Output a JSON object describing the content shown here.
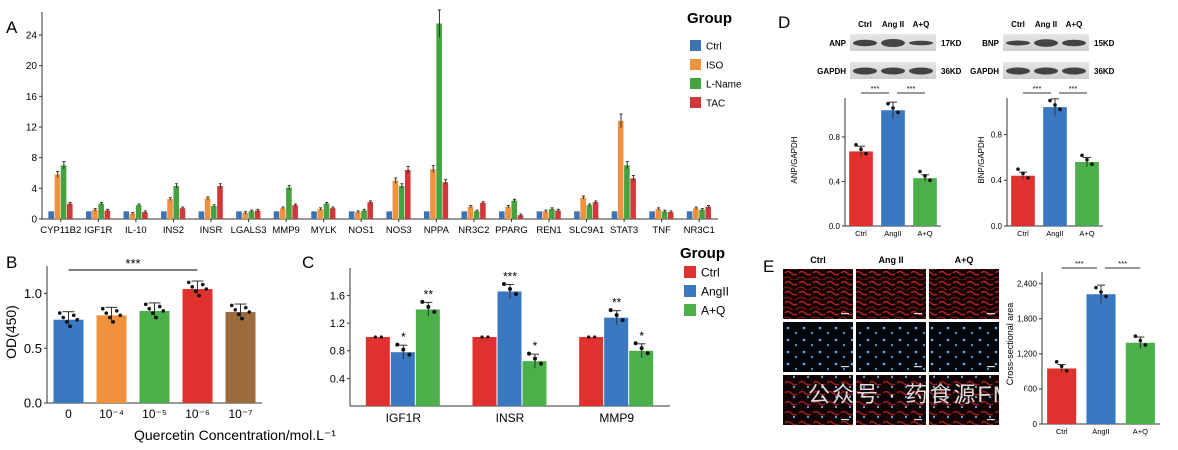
{
  "colors": {
    "ctrl": "#3d73b3",
    "iso": "#f0923d",
    "lname": "#44a33f",
    "tac": "#d0383a",
    "red": "#e0312e",
    "blue": "#3a78c2",
    "green": "#4cb04a",
    "orange": "#f0923d",
    "brown": "#9b6b3c"
  },
  "watermark": "公众号 · 药食源FMH",
  "chart_data": [
    {
      "id": "A",
      "type": "bar",
      "panel_letter": "A",
      "legend_title": "Group",
      "legend_position": "top-right",
      "categories": [
        "CYP11B2",
        "IGF1R",
        "IL-10",
        "INS2",
        "INSR",
        "LGALS3",
        "MMP9",
        "MYLK",
        "NOS1",
        "NOS3",
        "NPPA",
        "NR3C2",
        "PPARG",
        "REN1",
        "SLC9A1",
        "STAT3",
        "TNF",
        "NR3C1"
      ],
      "series": [
        {
          "name": "Ctrl",
          "values": [
            1,
            1,
            1,
            1,
            1,
            1,
            1,
            1,
            1,
            1,
            1,
            1,
            1,
            1,
            1,
            1,
            1,
            1
          ]
        },
        {
          "name": "ISO",
          "values": [
            5.8,
            1.2,
            0.7,
            2.6,
            2.7,
            0.8,
            1.4,
            1.3,
            0.9,
            5.0,
            6.5,
            1.6,
            1.6,
            1.0,
            2.8,
            12.8,
            1.3,
            1.4
          ]
        },
        {
          "name": "L-Name",
          "values": [
            7.0,
            2.0,
            1.8,
            4.3,
            1.7,
            1.0,
            4.1,
            2.0,
            1.1,
            4.3,
            25.5,
            1.0,
            2.4,
            1.3,
            1.8,
            7.0,
            1.0,
            1.2
          ]
        },
        {
          "name": "TAC",
          "values": [
            2.0,
            1.1,
            0.9,
            1.4,
            4.3,
            1.1,
            1.8,
            1.4,
            2.2,
            6.4,
            4.8,
            2.1,
            0.5,
            1.1,
            2.2,
            5.3,
            0.9,
            1.6
          ]
        }
      ],
      "ylim": [
        0,
        27
      ],
      "yticks": [
        "0",
        "4",
        "8",
        "12",
        "16",
        "20",
        "24"
      ]
    },
    {
      "id": "B",
      "type": "bar",
      "panel_letter": "B",
      "categories": [
        "0",
        "10⁻⁴",
        "10⁻⁵",
        "10⁻⁶",
        "10⁻⁷"
      ],
      "values": [
        0.76,
        0.8,
        0.84,
        1.04,
        0.83
      ],
      "xlabel": "Quercetin Concentration/mol.L⁻¹",
      "ylabel": "OD(450)",
      "ylim": [
        0,
        1.25
      ],
      "yticks": [
        "0.0",
        "0.5",
        "1.0"
      ],
      "significance": "***"
    },
    {
      "id": "C",
      "type": "bar",
      "panel_letter": "C",
      "legend_title": "Group",
      "legend_position": "top-right",
      "categories": [
        "IGF1R",
        "INSR",
        "MMP9"
      ],
      "series": [
        {
          "name": "Ctrl",
          "values": [
            1.0,
            1.0,
            1.0
          ]
        },
        {
          "name": "AngII",
          "values": [
            0.78,
            1.66,
            1.28
          ]
        },
        {
          "name": "A+Q",
          "values": [
            1.4,
            0.65,
            0.8
          ]
        }
      ],
      "annotations": [
        [
          "",
          "*",
          "**"
        ],
        [
          "",
          "***",
          "*"
        ],
        [
          "",
          "**",
          "*"
        ]
      ],
      "ylim": [
        0,
        2.0
      ],
      "yticks": [
        "0.4",
        "0.8",
        "1.2",
        "1.6"
      ]
    },
    {
      "id": "D_ANP",
      "type": "bar",
      "panel_letter": "D",
      "blot_lanes": [
        "Ctrl",
        "Ang II",
        "A+Q"
      ],
      "blot_bands": [
        {
          "name": "ANP",
          "size": "17KD"
        },
        {
          "name": "GAPDH",
          "size": "36KD"
        }
      ],
      "categories": [
        "Ctrl",
        "AngII",
        "A+Q"
      ],
      "values": [
        0.67,
        1.04,
        0.43
      ],
      "ylabel": "ANP/GAPDH",
      "ylim": [
        0,
        1.15
      ],
      "yticks": [
        "0.0",
        "0.4",
        "0.8"
      ],
      "significance": [
        "***",
        "***"
      ]
    },
    {
      "id": "D_BNP",
      "type": "bar",
      "blot_lanes": [
        "Ctrl",
        "Ang II",
        "A+Q"
      ],
      "blot_bands": [
        {
          "name": "BNP",
          "size": "15KD"
        },
        {
          "name": "GAPDH",
          "size": "36KD"
        }
      ],
      "categories": [
        "Ctrl",
        "AngII",
        "A+Q"
      ],
      "values": [
        0.44,
        1.04,
        0.56
      ],
      "ylabel": "BNP/GAPDH",
      "ylim": [
        0,
        1.12
      ],
      "yticks": [
        "0.0",
        "0.4",
        "0.8"
      ],
      "significance": [
        "***",
        "***"
      ]
    },
    {
      "id": "E",
      "type": "bar",
      "panel_letter": "E",
      "micrograph_columns": [
        "Ctrl",
        "Ang II",
        "A+Q"
      ],
      "categories": [
        "Ctrl",
        "AngII",
        "A+Q"
      ],
      "values": [
        950,
        2220,
        1390
      ],
      "ylabel": "Cross-sectional area",
      "ylim": [
        0,
        2600
      ],
      "yticks": [
        "0",
        "600",
        "1,200",
        "1,800",
        "2,400"
      ],
      "significance": [
        "***",
        "***"
      ]
    }
  ]
}
